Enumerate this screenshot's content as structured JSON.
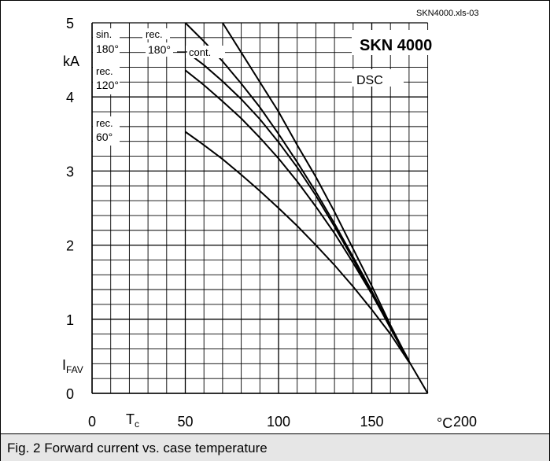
{
  "source_ref": "SKN4000.xls-03",
  "caption": "Fig. 2 Forward current vs. case temperature",
  "colors": {
    "background": "#ffffff",
    "grid": "#000000",
    "curves": "#000000",
    "caption_bar": "#e6e6e6"
  },
  "chart_data": {
    "type": "line",
    "title": "SKN 4000",
    "subtitle": "DSC",
    "x_axis": {
      "label": "T",
      "label_subscript": "c",
      "unit": "°C",
      "min": 0,
      "max": 200,
      "ticks": [
        0,
        50,
        100,
        150,
        200
      ],
      "minor_step": 10
    },
    "y_axis": {
      "label": "I",
      "label_subscript": "FAV",
      "unit": "kA",
      "min": 0,
      "max": 5,
      "ticks": [
        0,
        1,
        2,
        3,
        4,
        5
      ],
      "minor_step": 0.2
    },
    "grid": true,
    "series": [
      {
        "label_lines": [
          "cont."
        ],
        "points": [
          [
            70,
            5.0
          ],
          [
            80,
            4.6
          ],
          [
            90,
            4.2
          ],
          [
            100,
            3.8
          ],
          [
            110,
            3.35
          ],
          [
            120,
            2.92
          ],
          [
            130,
            2.45
          ],
          [
            140,
            1.95
          ],
          [
            150,
            1.45
          ],
          [
            160,
            0.92
          ],
          [
            170,
            0.43
          ],
          [
            180,
            0.0
          ]
        ]
      },
      {
        "label_lines": [
          "rec.",
          "180°"
        ],
        "points": [
          [
            50,
            5.0
          ],
          [
            60,
            4.75
          ],
          [
            70,
            4.48
          ],
          [
            80,
            4.18
          ],
          [
            90,
            3.86
          ],
          [
            100,
            3.5
          ],
          [
            110,
            3.12
          ],
          [
            120,
            2.72
          ],
          [
            130,
            2.29
          ],
          [
            140,
            1.84
          ],
          [
            150,
            1.38
          ],
          [
            160,
            0.9
          ],
          [
            170,
            0.44
          ]
        ]
      },
      {
        "label_lines": [
          "sin.",
          "180°"
        ],
        "points": [
          [
            50,
            4.62
          ],
          [
            60,
            4.43
          ],
          [
            70,
            4.21
          ],
          [
            80,
            3.97
          ],
          [
            90,
            3.7
          ],
          [
            100,
            3.39
          ],
          [
            110,
            3.05
          ],
          [
            120,
            2.67
          ],
          [
            130,
            2.25
          ],
          [
            140,
            1.81
          ],
          [
            150,
            1.35
          ],
          [
            160,
            0.88
          ],
          [
            170,
            0.42
          ]
        ]
      },
      {
        "label_lines": [
          "rec.",
          "120°"
        ],
        "points": [
          [
            50,
            4.36
          ],
          [
            60,
            4.16
          ],
          [
            70,
            3.94
          ],
          [
            80,
            3.71
          ],
          [
            90,
            3.45
          ],
          [
            100,
            3.17
          ],
          [
            110,
            2.86
          ],
          [
            120,
            2.52
          ],
          [
            130,
            2.16
          ],
          [
            140,
            1.76
          ],
          [
            150,
            1.34
          ],
          [
            160,
            0.89
          ],
          [
            170,
            0.43
          ]
        ]
      },
      {
        "label_lines": [
          "rec.",
          "60°"
        ],
        "points": [
          [
            50,
            3.53
          ],
          [
            60,
            3.35
          ],
          [
            70,
            3.16
          ],
          [
            80,
            2.95
          ],
          [
            90,
            2.73
          ],
          [
            100,
            2.5
          ],
          [
            110,
            2.26
          ],
          [
            120,
            2.0
          ],
          [
            130,
            1.73
          ],
          [
            140,
            1.44
          ],
          [
            150,
            1.13
          ],
          [
            160,
            0.8
          ],
          [
            170,
            0.42
          ]
        ]
      }
    ]
  }
}
